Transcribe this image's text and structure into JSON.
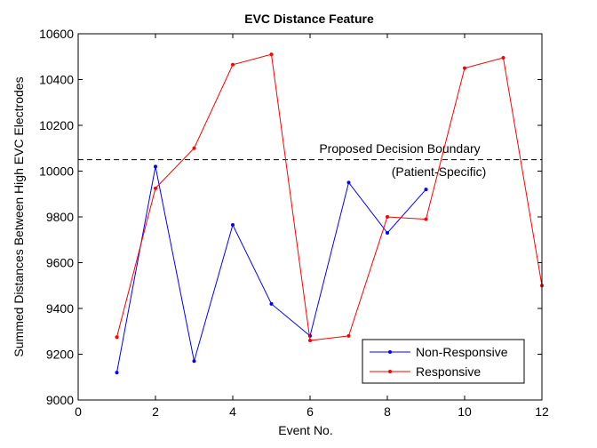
{
  "chart_data": {
    "type": "line",
    "title": "EVC Distance Feature",
    "xlabel": "Event No.",
    "ylabel": "Summed Distances Between High EVC Electrodes",
    "xlim": [
      0,
      12
    ],
    "ylim": [
      9000,
      10600
    ],
    "xticks": [
      0,
      2,
      4,
      6,
      8,
      10,
      12
    ],
    "yticks": [
      9000,
      9200,
      9400,
      9600,
      9800,
      10000,
      10200,
      10400,
      10600
    ],
    "grid": false,
    "legend_position": "bottom-right",
    "series": [
      {
        "name": "Non-Responsive",
        "color": "#0000ff",
        "x": [
          1,
          2,
          3,
          4,
          5,
          6,
          7,
          8,
          9
        ],
        "y": [
          9120,
          10020,
          9170,
          9765,
          9420,
          9280,
          9950,
          9730,
          9920
        ]
      },
      {
        "name": "Responsive",
        "color": "#ff0000",
        "x": [
          1,
          2,
          3,
          4,
          5,
          6,
          7,
          8,
          9,
          10,
          11,
          12
        ],
        "y": [
          9275,
          9925,
          10100,
          10465,
          10510,
          9260,
          9280,
          9800,
          9790,
          10450,
          10495,
          9500
        ]
      }
    ],
    "reference_line": {
      "y": 10050,
      "style": "dashed",
      "color": "#000000",
      "label_line1": "Proposed Decision Boundary",
      "label_line2": "(Patient-Specific)"
    }
  }
}
